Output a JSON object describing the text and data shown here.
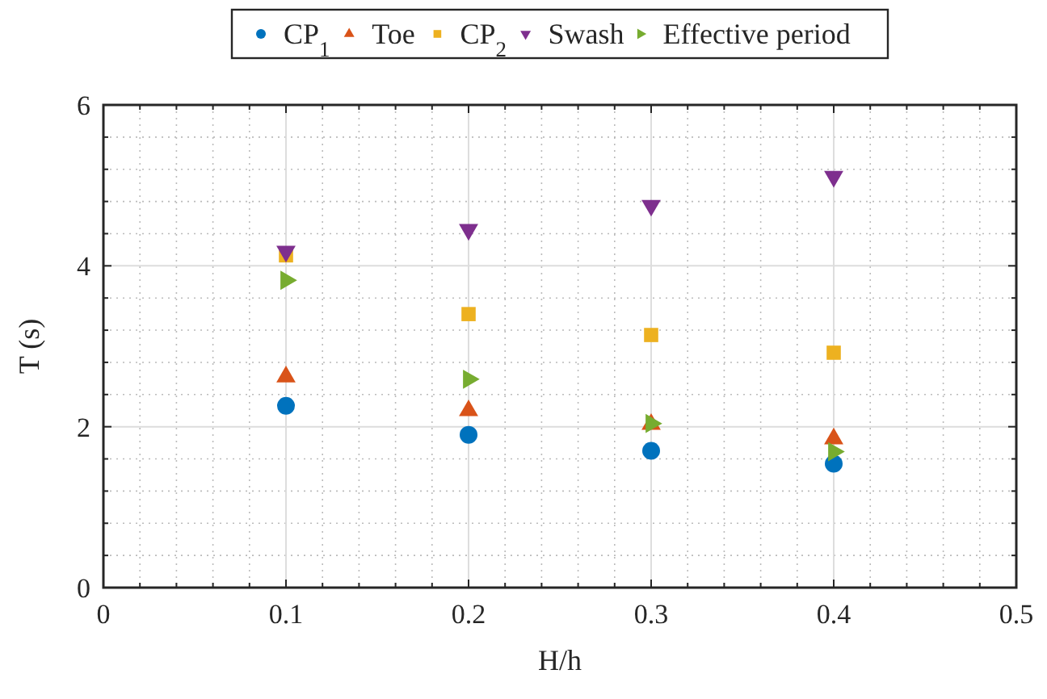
{
  "chart_data": {
    "type": "scatter",
    "xlabel": "H/h",
    "ylabel": "T (s)",
    "x": [
      0.1,
      0.2,
      0.3,
      0.4
    ],
    "xlim": [
      0,
      0.5
    ],
    "xticks": [
      0,
      0.1,
      0.2,
      0.3,
      0.4,
      0.5
    ],
    "ylim": [
      0,
      6
    ],
    "yticks": [
      0,
      2,
      4,
      6
    ],
    "grid": true,
    "legend": "top",
    "series": [
      {
        "name": "CP$_{1}$",
        "color": "#0072bd",
        "marker": "circle",
        "values": [
          2.26,
          1.9,
          1.7,
          1.54
        ]
      },
      {
        "name": "Toe",
        "color": "#d95319",
        "marker": "triangle",
        "values": [
          2.62,
          2.2,
          2.03,
          1.85
        ]
      },
      {
        "name": "CP$_{2}$",
        "color": "#edb120",
        "marker": "square",
        "values": [
          4.13,
          3.4,
          3.14,
          2.92
        ]
      },
      {
        "name": "Swash",
        "color": "#7e2f8e",
        "marker": "triangle-down",
        "values": [
          4.18,
          4.45,
          4.75,
          5.11
        ]
      },
      {
        "name": "Effective period",
        "color": "#77ac30",
        "marker": "triangle-right",
        "values": [
          3.82,
          2.59,
          2.04,
          1.69
        ]
      }
    ]
  }
}
